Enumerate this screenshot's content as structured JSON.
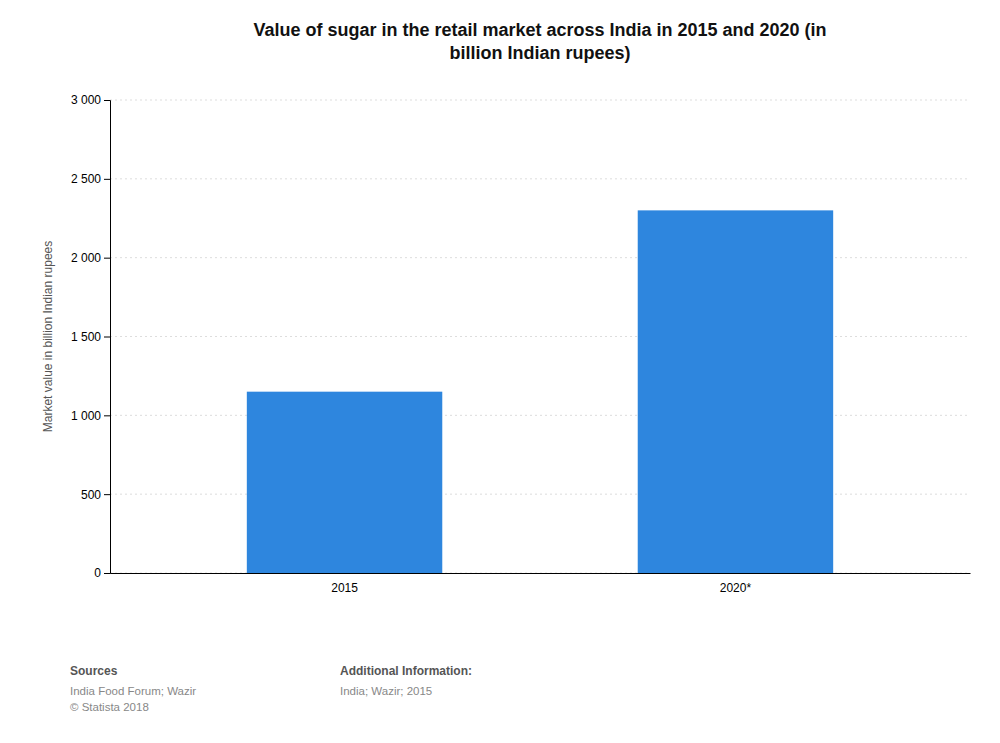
{
  "chart_data": {
    "type": "bar",
    "title": "Value of sugar in the retail market across India in 2015 and 2020 (in\nbillion Indian rupees)",
    "categories": [
      "2015",
      "2020*"
    ],
    "values": [
      1150,
      2300
    ],
    "color": "#2e86de",
    "ylabel": "Market value in billion Indian rupees",
    "ylim": [
      0,
      3000
    ],
    "yticks": [
      0,
      500,
      {
        "value": 1000,
        "label": "1 000"
      },
      {
        "value": 1500,
        "label": "1 500"
      },
      {
        "value": 2000,
        "label": "2 000"
      },
      {
        "value": 2500,
        "label": "2 500"
      },
      {
        "value": 3000,
        "label": "3 000"
      }
    ],
    "grid": true,
    "annotations": [
      "Sources",
      "India Food Forum; Wazir\n© Statista 2018",
      "Additional Information:",
      "India; Wazir; 2015"
    ]
  }
}
